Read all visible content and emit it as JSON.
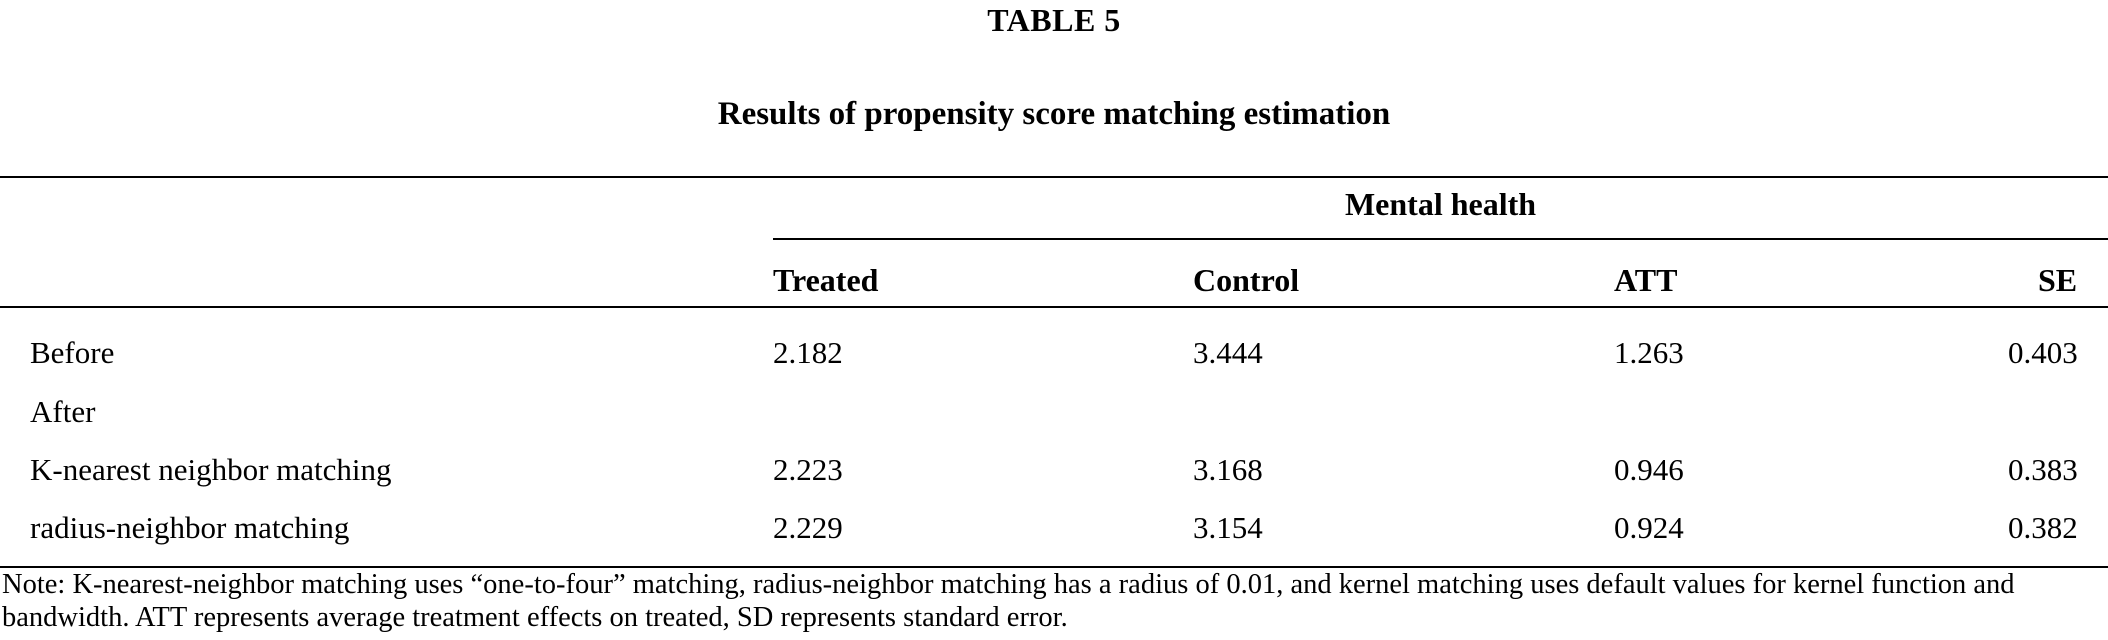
{
  "table": {
    "label": "TABLE 5",
    "caption": "Results of propensity score matching estimation",
    "group_header": "Mental health",
    "columns": [
      "Treated",
      "Control",
      "ATT",
      "SE"
    ],
    "rows": [
      {
        "label": "Before",
        "values": [
          "2.182",
          "3.444",
          "1.263",
          "0.403"
        ]
      },
      {
        "label": "After",
        "values": [
          "",
          "",
          "",
          ""
        ]
      },
      {
        "label": "K-nearest neighbor matching",
        "values": [
          "2.223",
          "3.168",
          "0.946",
          "0.383"
        ]
      },
      {
        "label": "radius-neighbor matching",
        "values": [
          "2.229",
          "3.154",
          "0.924",
          "0.382"
        ]
      }
    ],
    "note": "Note: K-nearest-neighbor matching uses “one-to-four” matching, radius-neighbor matching has a radius of 0.01, and kernel matching uses default values for kernel function and bandwidth. ATT represents average treatment effects on treated, SD represents standard error."
  }
}
